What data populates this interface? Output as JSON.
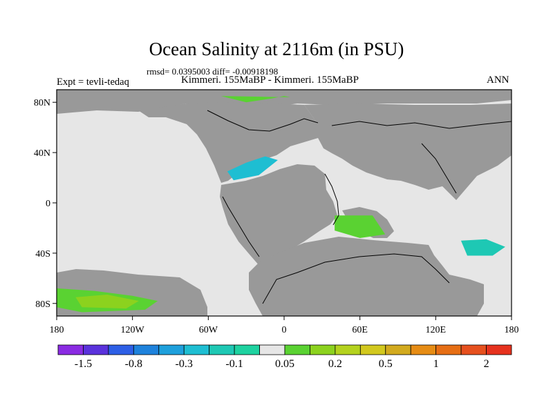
{
  "header": {
    "title": "Ocean Salinity at 2116m (in PSU)",
    "stats": "rmsd= 0.0395003 diff= -0.00918198",
    "experiment": "Expt = tevli-tedaq",
    "runs": "Kimmeri. 155MaBP - Kimmeri. 155MaBP",
    "season": "ANN"
  },
  "chart_data": {
    "type": "heatmap",
    "title": "Ocean Salinity at 2116m (in PSU)",
    "subtitle": "Kimmeri. 155MaBP - Kimmeri. 155MaBP",
    "xlabel": "",
    "ylabel": "",
    "xlim": [
      -180,
      180
    ],
    "ylim": [
      -90,
      90
    ],
    "x_ticks": [
      {
        "value": -180,
        "label": "180"
      },
      {
        "value": -120,
        "label": "120W"
      },
      {
        "value": -60,
        "label": "60W"
      },
      {
        "value": 0,
        "label": "0"
      },
      {
        "value": 60,
        "label": "60E"
      },
      {
        "value": 120,
        "label": "120E"
      },
      {
        "value": 180,
        "label": "180"
      }
    ],
    "y_ticks": [
      {
        "value": 80,
        "label": "80N"
      },
      {
        "value": 40,
        "label": "40N"
      },
      {
        "value": 0,
        "label": "0"
      },
      {
        "value": -40,
        "label": "40S"
      },
      {
        "value": -80,
        "label": "80S"
      }
    ],
    "colorbar": {
      "colors": [
        "#8a2be2",
        "#5a32dc",
        "#2d5fe6",
        "#1e82dc",
        "#1ea0dc",
        "#1ebed2",
        "#1ec8b4",
        "#1ed2a0",
        "#e6e6e6",
        "#5ad232",
        "#8cd21e",
        "#b4d21e",
        "#d2c81e",
        "#d2aa1e",
        "#e68c14",
        "#e66e14",
        "#e6501e",
        "#e6321e"
      ],
      "tick_labels": [
        {
          "after_box": 1,
          "label": "-1.5"
        },
        {
          "after_box": 3,
          "label": "-0.8"
        },
        {
          "after_box": 5,
          "label": "-0.3"
        },
        {
          "after_box": 7,
          "label": "-0.1"
        },
        {
          "after_box": 9,
          "label": "0.05"
        },
        {
          "after_box": 11,
          "label": "0.2"
        },
        {
          "after_box": 13,
          "label": "0.5"
        },
        {
          "after_box": 15,
          "label": "1"
        },
        {
          "after_box": 17,
          "label": "2"
        }
      ]
    },
    "anomaly_regions": [
      {
        "name": "arctic-north-atlantic",
        "color": "#5ad232",
        "lons": [
          -50,
          -30,
          -10,
          0,
          5
        ],
        "lats": [
          85,
          80,
          83,
          85,
          84
        ]
      },
      {
        "name": "tethys-west",
        "color": "#1ebed2",
        "lons": [
          -45,
          -30,
          -15,
          -5,
          -20,
          -40
        ],
        "lats": [
          25,
          32,
          37,
          34,
          22,
          18
        ]
      },
      {
        "name": "south-pacific",
        "color": "#5ad232",
        "lons": [
          -180,
          -150,
          -120,
          -100,
          -110,
          -160,
          -180
        ],
        "lats": [
          -68,
          -70,
          -74,
          -78,
          -85,
          -87,
          -83
        ]
      },
      {
        "name": "south-pacific-core",
        "color": "#8cd21e",
        "lons": [
          -165,
          -140,
          -115,
          -125,
          -160
        ],
        "lats": [
          -75,
          -73,
          -78,
          -84,
          -83
        ]
      },
      {
        "name": "tethys-south",
        "color": "#5ad232",
        "lons": [
          40,
          70,
          80,
          60,
          40
        ],
        "lats": [
          -10,
          -10,
          -25,
          -28,
          -22
        ]
      },
      {
        "name": "indian-south",
        "color": "#1ec8b4",
        "lons": [
          140,
          160,
          175,
          165,
          145
        ],
        "lats": [
          -30,
          -29,
          -35,
          -42,
          -42
        ]
      }
    ]
  }
}
